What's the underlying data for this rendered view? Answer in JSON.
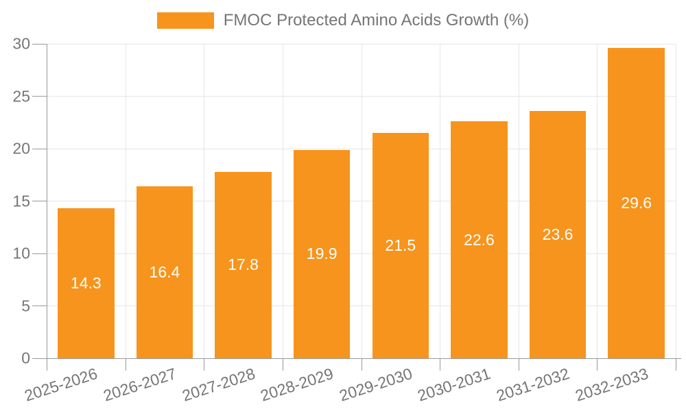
{
  "chart_data": {
    "type": "bar",
    "title": "FMOC Protected Amino Acids Growth (%)",
    "legend_position": "top",
    "categories": [
      "2025-2026",
      "2026-2027",
      "2027-2028",
      "2028-2029",
      "2029-2030",
      "2030-2031",
      "2031-2032",
      "2032-2033"
    ],
    "values": [
      14.3,
      16.4,
      17.8,
      19.9,
      21.5,
      22.6,
      23.6,
      29.6
    ],
    "xlabel": "",
    "ylabel": "",
    "ylim": [
      0,
      30
    ],
    "yticks": [
      0,
      5,
      10,
      15,
      20,
      25,
      30
    ],
    "grid": true,
    "colors": {
      "bar": "#F7941D",
      "bar_label": "#FFFFFF",
      "axis_line": "#999999",
      "grid_line": "#E6E6E6",
      "tick_label": "#757575",
      "legend_text": "#757575"
    }
  }
}
